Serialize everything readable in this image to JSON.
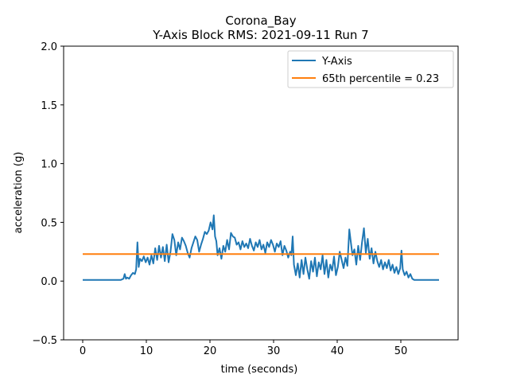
{
  "chart_data": {
    "type": "line",
    "title": "Corona_Bay",
    "subtitle": "Y-Axis Block RMS: 2021-09-11 Run 7",
    "xlabel": "time (seconds)",
    "ylabel": "acceleration (g)",
    "xlim": [
      -3,
      59
    ],
    "ylim": [
      -0.5,
      2.0
    ],
    "x_ticks": [
      0,
      10,
      20,
      30,
      40,
      50
    ],
    "x_tick_labels": [
      "0",
      "10",
      "20",
      "30",
      "40",
      "50"
    ],
    "y_ticks": [
      -0.5,
      0.0,
      0.5,
      1.0,
      1.5,
      2.0
    ],
    "y_tick_labels": [
      "−0.5",
      "0.0",
      "0.5",
      "1.0",
      "1.5",
      "2.0"
    ],
    "grid": false,
    "legend_position": "top-right",
    "series": [
      {
        "name": "Y-Axis",
        "color": "#1f77b4",
        "points": [
          [
            0,
            0.01
          ],
          [
            2,
            0.01
          ],
          [
            4,
            0.01
          ],
          [
            6,
            0.01
          ],
          [
            6.4,
            0.02
          ],
          [
            6.6,
            0.06
          ],
          [
            6.8,
            0.02
          ],
          [
            7.0,
            0.03
          ],
          [
            7.3,
            0.02
          ],
          [
            7.6,
            0.05
          ],
          [
            7.9,
            0.07
          ],
          [
            8.2,
            0.06
          ],
          [
            8.4,
            0.1
          ],
          [
            8.6,
            0.33
          ],
          [
            8.8,
            0.12
          ],
          [
            9.0,
            0.19
          ],
          [
            9.3,
            0.17
          ],
          [
            9.6,
            0.21
          ],
          [
            9.9,
            0.16
          ],
          [
            10.2,
            0.2
          ],
          [
            10.5,
            0.14
          ],
          [
            10.8,
            0.22
          ],
          [
            11.1,
            0.15
          ],
          [
            11.4,
            0.28
          ],
          [
            11.7,
            0.18
          ],
          [
            12.0,
            0.3
          ],
          [
            12.3,
            0.2
          ],
          [
            12.6,
            0.29
          ],
          [
            12.9,
            0.17
          ],
          [
            13.2,
            0.31
          ],
          [
            13.5,
            0.16
          ],
          [
            13.8,
            0.25
          ],
          [
            14.1,
            0.4
          ],
          [
            14.4,
            0.35
          ],
          [
            14.7,
            0.22
          ],
          [
            15.0,
            0.33
          ],
          [
            15.3,
            0.27
          ],
          [
            15.6,
            0.37
          ],
          [
            15.9,
            0.34
          ],
          [
            16.2,
            0.3
          ],
          [
            16.5,
            0.24
          ],
          [
            16.8,
            0.2
          ],
          [
            17.1,
            0.28
          ],
          [
            17.4,
            0.33
          ],
          [
            17.7,
            0.38
          ],
          [
            18.0,
            0.35
          ],
          [
            18.3,
            0.25
          ],
          [
            18.6,
            0.31
          ],
          [
            18.9,
            0.36
          ],
          [
            19.2,
            0.42
          ],
          [
            19.5,
            0.4
          ],
          [
            19.8,
            0.43
          ],
          [
            20.1,
            0.5
          ],
          [
            20.4,
            0.44
          ],
          [
            20.6,
            0.56
          ],
          [
            20.8,
            0.38
          ],
          [
            21.0,
            0.34
          ],
          [
            21.2,
            0.22
          ],
          [
            21.5,
            0.28
          ],
          [
            21.8,
            0.19
          ],
          [
            22.1,
            0.3
          ],
          [
            22.4,
            0.25
          ],
          [
            22.7,
            0.35
          ],
          [
            23.0,
            0.27
          ],
          [
            23.3,
            0.41
          ],
          [
            23.6,
            0.38
          ],
          [
            23.9,
            0.37
          ],
          [
            24.2,
            0.31
          ],
          [
            24.5,
            0.33
          ],
          [
            24.8,
            0.27
          ],
          [
            25.1,
            0.34
          ],
          [
            25.4,
            0.29
          ],
          [
            25.7,
            0.32
          ],
          [
            26.0,
            0.28
          ],
          [
            26.3,
            0.36
          ],
          [
            26.6,
            0.3
          ],
          [
            26.9,
            0.26
          ],
          [
            27.2,
            0.33
          ],
          [
            27.5,
            0.29
          ],
          [
            27.8,
            0.35
          ],
          [
            28.1,
            0.27
          ],
          [
            28.4,
            0.31
          ],
          [
            28.7,
            0.24
          ],
          [
            29.0,
            0.33
          ],
          [
            29.3,
            0.29
          ],
          [
            29.6,
            0.35
          ],
          [
            29.9,
            0.31
          ],
          [
            30.2,
            0.25
          ],
          [
            30.5,
            0.32
          ],
          [
            30.8,
            0.29
          ],
          [
            31.1,
            0.34
          ],
          [
            31.4,
            0.22
          ],
          [
            31.7,
            0.3
          ],
          [
            32.0,
            0.26
          ],
          [
            32.3,
            0.2
          ],
          [
            32.6,
            0.25
          ],
          [
            32.8,
            0.22
          ],
          [
            33.0,
            0.38
          ],
          [
            33.2,
            0.14
          ],
          [
            33.5,
            0.05
          ],
          [
            33.8,
            0.15
          ],
          [
            34.1,
            0.03
          ],
          [
            34.4,
            0.18
          ],
          [
            34.7,
            0.06
          ],
          [
            35.0,
            0.2
          ],
          [
            35.3,
            0.1
          ],
          [
            35.6,
            0.02
          ],
          [
            35.9,
            0.17
          ],
          [
            36.2,
            0.08
          ],
          [
            36.5,
            0.2
          ],
          [
            36.8,
            0.04
          ],
          [
            37.1,
            0.16
          ],
          [
            37.4,
            0.1
          ],
          [
            37.7,
            0.22
          ],
          [
            38.0,
            0.06
          ],
          [
            38.3,
            0.18
          ],
          [
            38.6,
            0.03
          ],
          [
            38.9,
            0.14
          ],
          [
            39.2,
            0.09
          ],
          [
            39.5,
            0.21
          ],
          [
            39.8,
            0.05
          ],
          [
            40.1,
            0.12
          ],
          [
            40.4,
            0.25
          ],
          [
            40.7,
            0.18
          ],
          [
            41.0,
            0.11
          ],
          [
            41.3,
            0.2
          ],
          [
            41.6,
            0.13
          ],
          [
            41.9,
            0.44
          ],
          [
            42.1,
            0.35
          ],
          [
            42.4,
            0.22
          ],
          [
            42.7,
            0.27
          ],
          [
            43.0,
            0.14
          ],
          [
            43.3,
            0.3
          ],
          [
            43.6,
            0.18
          ],
          [
            43.9,
            0.33
          ],
          [
            44.2,
            0.45
          ],
          [
            44.5,
            0.24
          ],
          [
            44.8,
            0.36
          ],
          [
            45.1,
            0.19
          ],
          [
            45.4,
            0.28
          ],
          [
            45.7,
            0.15
          ],
          [
            46.0,
            0.25
          ],
          [
            46.3,
            0.17
          ],
          [
            46.6,
            0.12
          ],
          [
            46.9,
            0.18
          ],
          [
            47.2,
            0.1
          ],
          [
            47.5,
            0.16
          ],
          [
            47.8,
            0.11
          ],
          [
            48.1,
            0.18
          ],
          [
            48.4,
            0.09
          ],
          [
            48.7,
            0.14
          ],
          [
            49.0,
            0.07
          ],
          [
            49.3,
            0.12
          ],
          [
            49.6,
            0.06
          ],
          [
            49.9,
            0.11
          ],
          [
            50.1,
            0.26
          ],
          [
            50.3,
            0.1
          ],
          [
            50.6,
            0.05
          ],
          [
            50.9,
            0.08
          ],
          [
            51.2,
            0.03
          ],
          [
            51.5,
            0.06
          ],
          [
            51.8,
            0.02
          ],
          [
            52.1,
            0.01
          ],
          [
            54,
            0.01
          ],
          [
            56,
            0.01
          ]
        ]
      },
      {
        "name": "65th percentile = 0.23",
        "color": "#ff7f0e",
        "points": [
          [
            0,
            0.23
          ],
          [
            56,
            0.23
          ]
        ]
      }
    ]
  }
}
